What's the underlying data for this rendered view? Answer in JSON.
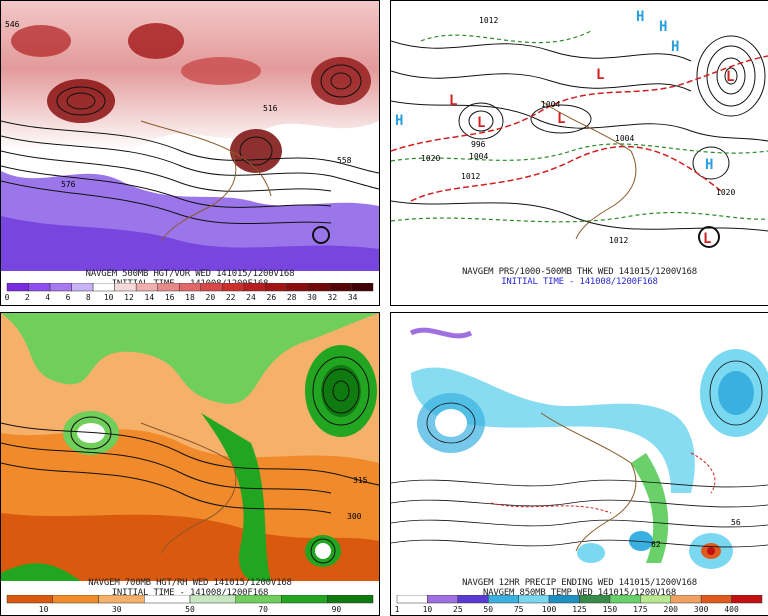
{
  "panels": {
    "vort": {
      "caption_line1": "NAVGEM 500MB HGT/VOR WED 141015/1200V168",
      "caption_line2": "INITIAL TIME - 141008/1200F168",
      "legend_labels": [
        "0",
        "2",
        "4",
        "6",
        "8",
        "10",
        "12",
        "14",
        "16",
        "18",
        "20",
        "22",
        "24",
        "26",
        "28",
        "30",
        "32",
        "34"
      ],
      "legend_colors": [
        "#7a2ae0",
        "#8f4ff0",
        "#a878f2",
        "#c9b2f6",
        "#ffffff",
        "#f7d9d9",
        "#f0b0b0",
        "#e88a8a",
        "#e06868",
        "#d84848",
        "#cc2e2e",
        "#b81e1e",
        "#a01414",
        "#880c0c",
        "#700808",
        "#580404",
        "#400202"
      ],
      "contour_labels": [
        "546",
        "576",
        "516",
        "558"
      ]
    },
    "prs": {
      "caption_line1": "NAVGEM PRS/1000-500MB THK WED 141015/1200V168",
      "caption_line2": "INITIAL TIME - 141008/1200F168",
      "highs": [
        "H",
        "H",
        "H",
        "H",
        "H"
      ],
      "lows": [
        "L",
        "L",
        "L",
        "L",
        "L",
        "L"
      ],
      "isobar_labels": [
        "1012",
        "1004",
        "996",
        "1004",
        "1020",
        "1012",
        "1012",
        "1004",
        "1020"
      ]
    },
    "rh": {
      "caption_line1": "NAVGEM 700MB HGT/RH WED 141015/1200V168",
      "caption_line2": "INITIAL TIME - 141008/1200F168",
      "legend_labels": [
        "10",
        "30",
        "50",
        "70",
        "90"
      ],
      "legend_colors": [
        "#d9590f",
        "#f08a2a",
        "#f5b06a",
        "#ffffff",
        "#c8e8c0",
        "#6fcf5a",
        "#22a520",
        "#0f7a10"
      ],
      "contour_labels": [
        "315",
        "300"
      ]
    },
    "precip": {
      "caption_line1": "NAVGEM 12HR PRECIP ENDING WED 141015/1200V168",
      "caption_line2": "NAVGEM 850MB TEMP WED 141015/1200V168",
      "legend_labels": [
        "1",
        "10",
        "25",
        "50",
        "75",
        "100",
        "125",
        "150",
        "175",
        "200",
        "300",
        "400"
      ],
      "legend_colors": [
        "#ffffff",
        "#a070e0",
        "#5a3ad0",
        "#3ab0e0",
        "#7ad8f0",
        "#2090c0",
        "#3a8a4a",
        "#6ad06a",
        "#b8e890",
        "#f0a060",
        "#e05a20",
        "#c01010"
      ],
      "contour_labels": [
        "56",
        "62"
      ]
    }
  }
}
